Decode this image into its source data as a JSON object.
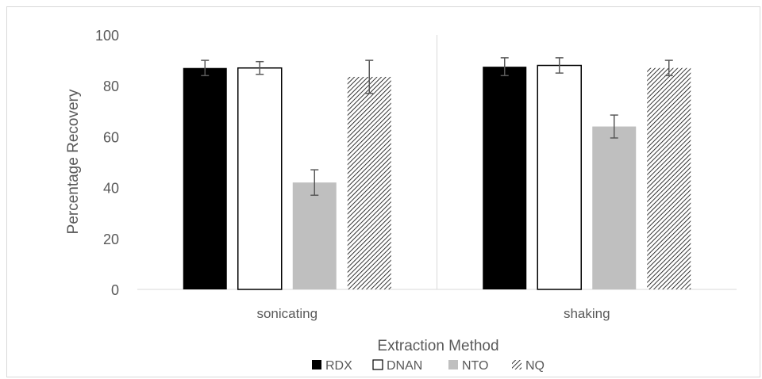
{
  "chart_data": {
    "type": "bar",
    "title": "",
    "xlabel": "Extraction Method",
    "ylabel": "Percentage Recovery",
    "categories": [
      "sonicating",
      "shaking"
    ],
    "ylim": [
      0,
      100
    ],
    "yticks": [
      "0",
      "20",
      "40",
      "60",
      "80",
      "100"
    ],
    "grid": false,
    "legend_position": "bottom",
    "series": [
      {
        "name": "RDX",
        "values": [
          87,
          87.5
        ],
        "errors": [
          3,
          3.5
        ],
        "fill": "#000000",
        "pattern": "solid"
      },
      {
        "name": "DNAN",
        "values": [
          87,
          88
        ],
        "errors": [
          2.5,
          3
        ],
        "fill": "#ffffff",
        "pattern": "outline"
      },
      {
        "name": "NTO",
        "values": [
          42,
          64
        ],
        "errors": [
          5,
          4.5
        ],
        "fill": "#bfbfbf",
        "pattern": "solid"
      },
      {
        "name": "NQ",
        "values": [
          83.5,
          87
        ],
        "errors": [
          6.5,
          3
        ],
        "fill": "#000000",
        "pattern": "diagonal-hatch"
      }
    ]
  }
}
